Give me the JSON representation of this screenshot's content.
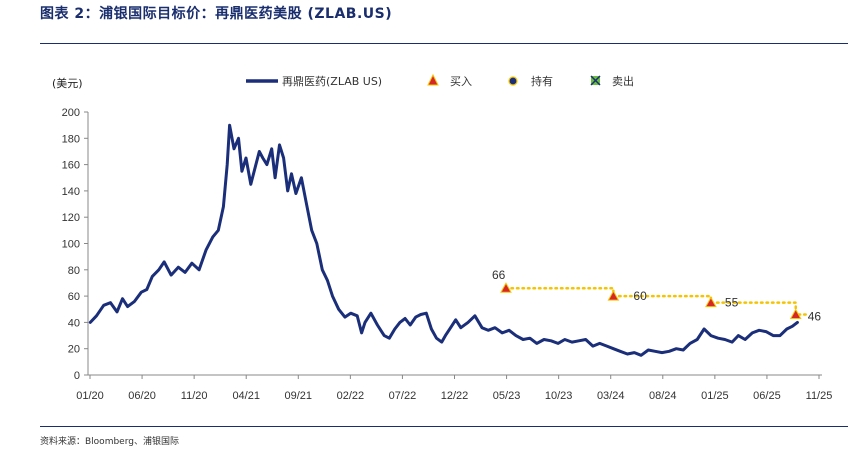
{
  "header": {
    "title": "图表 2：浦银国际目标价：再鼎医药美股 (ZLAB.US)"
  },
  "footer": {
    "source": "资料来源：Bloomberg、浦银国际"
  },
  "colors": {
    "price_line": "#1a2e7a",
    "target_line": "#f5c400",
    "buy_marker": "#d62728",
    "hold_marker": "#1a2e7a",
    "sell_marker": "#6bbf3a",
    "rule": "#1a2e6e"
  },
  "chart_data": {
    "type": "line",
    "title": "",
    "ylabel": "(美元)",
    "xlabel": "",
    "ylim": [
      0,
      200
    ],
    "yticks": [
      0,
      20,
      40,
      60,
      80,
      100,
      120,
      140,
      160,
      180,
      200
    ],
    "xticks": [
      "01/20",
      "06/20",
      "11/20",
      "04/21",
      "09/21",
      "02/22",
      "07/22",
      "12/22",
      "05/23",
      "10/23",
      "03/24",
      "08/24",
      "01/25",
      "06/25",
      "11/25"
    ],
    "grid": false,
    "legend_position": "top",
    "legend": [
      {
        "label": "再鼎医药(ZLAB US)",
        "kind": "line"
      },
      {
        "label": "买入",
        "kind": "buy"
      },
      {
        "label": "持有",
        "kind": "hold"
      },
      {
        "label": "卖出",
        "kind": "sell"
      }
    ],
    "price_series": {
      "name": "再鼎医药(ZLAB US)",
      "x": [
        "2020-01-02",
        "2020-01-20",
        "2020-02-10",
        "2020-03-01",
        "2020-03-20",
        "2020-04-05",
        "2020-04-20",
        "2020-05-10",
        "2020-05-30",
        "2020-06-15",
        "2020-07-01",
        "2020-07-20",
        "2020-08-05",
        "2020-08-25",
        "2020-09-15",
        "2020-10-05",
        "2020-10-25",
        "2020-11-15",
        "2020-12-05",
        "2020-12-25",
        "2021-01-10",
        "2021-01-25",
        "2021-02-05",
        "2021-02-12",
        "2021-02-25",
        "2021-03-10",
        "2021-03-20",
        "2021-04-01",
        "2021-04-15",
        "2021-04-28",
        "2021-05-10",
        "2021-05-20",
        "2021-06-01",
        "2021-06-15",
        "2021-06-25",
        "2021-07-08",
        "2021-07-20",
        "2021-08-01",
        "2021-08-12",
        "2021-08-25",
        "2021-09-10",
        "2021-09-25",
        "2021-10-10",
        "2021-10-25",
        "2021-11-10",
        "2021-11-25",
        "2021-12-10",
        "2021-12-28",
        "2022-01-15",
        "2022-02-01",
        "2022-02-20",
        "2022-03-05",
        "2022-03-15",
        "2022-04-01",
        "2022-04-20",
        "2022-05-10",
        "2022-05-25",
        "2022-06-10",
        "2022-06-25",
        "2022-07-10",
        "2022-07-25",
        "2022-08-10",
        "2022-08-25",
        "2022-09-10",
        "2022-09-25",
        "2022-10-10",
        "2022-10-25",
        "2022-11-05",
        "2022-11-20",
        "2022-12-05",
        "2022-12-20",
        "2023-01-10",
        "2023-01-30",
        "2023-02-20",
        "2023-03-10",
        "2023-03-30",
        "2023-04-20",
        "2023-05-10",
        "2023-05-30",
        "2023-06-20",
        "2023-07-10",
        "2023-07-30",
        "2023-08-20",
        "2023-09-10",
        "2023-09-30",
        "2023-10-20",
        "2023-11-10",
        "2023-11-30",
        "2023-12-20",
        "2024-01-10",
        "2024-01-30",
        "2024-02-20",
        "2024-03-10",
        "2024-03-30",
        "2024-04-20",
        "2024-05-10",
        "2024-05-30",
        "2024-06-20",
        "2024-07-10",
        "2024-07-30",
        "2024-08-20",
        "2024-09-10",
        "2024-09-30",
        "2024-10-20",
        "2024-11-10",
        "2024-11-30",
        "2024-12-20",
        "2025-01-10",
        "2025-01-30",
        "2025-02-20",
        "2025-03-10",
        "2025-03-30",
        "2025-04-20",
        "2025-05-10",
        "2025-05-30",
        "2025-06-20",
        "2025-07-10",
        "2025-07-30",
        "2025-08-15",
        "2025-08-30"
      ],
      "y": [
        40,
        45,
        53,
        55,
        48,
        58,
        52,
        56,
        63,
        65,
        75,
        80,
        86,
        76,
        82,
        78,
        85,
        80,
        95,
        105,
        110,
        128,
        160,
        190,
        172,
        180,
        155,
        165,
        145,
        158,
        170,
        165,
        160,
        172,
        150,
        175,
        165,
        140,
        153,
        138,
        150,
        130,
        110,
        100,
        80,
        72,
        60,
        50,
        44,
        47,
        45,
        32,
        40,
        47,
        38,
        30,
        28,
        35,
        40,
        43,
        38,
        44,
        46,
        47,
        35,
        28,
        25,
        30,
        36,
        42,
        36,
        40,
        45,
        36,
        34,
        36,
        32,
        34,
        30,
        27,
        28,
        24,
        27,
        26,
        24,
        27,
        25,
        26,
        27,
        22,
        24,
        22,
        20,
        18,
        16,
        17,
        15,
        19,
        18,
        17,
        18,
        20,
        19,
        24,
        27,
        35,
        30,
        28,
        27,
        25,
        30,
        27,
        32,
        34,
        33,
        30,
        30,
        35,
        37,
        40
      ]
    },
    "target_prices": [
      {
        "date": "2023-05-01",
        "value": 66,
        "rating": "买入",
        "label": "66"
      },
      {
        "date": "2024-03-10",
        "value": 60,
        "rating": "买入",
        "label": "60"
      },
      {
        "date": "2024-12-20",
        "value": 55,
        "rating": "买入",
        "label": "55"
      },
      {
        "date": "2025-08-25",
        "value": 46,
        "rating": "买入",
        "label": "46"
      }
    ]
  }
}
